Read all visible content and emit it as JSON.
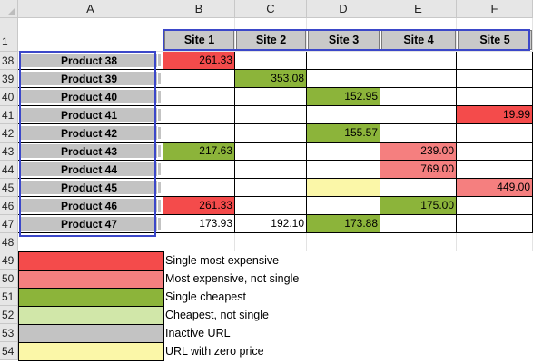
{
  "columns": [
    "A",
    "B",
    "C",
    "D",
    "E",
    "F"
  ],
  "header_row": {
    "row_number": "1",
    "sites": [
      "Site 1",
      "Site 2",
      "Site 3",
      "Site 4",
      "Site 5"
    ]
  },
  "colors": {
    "red": "#f44b4b",
    "light_red": "#f57f7f",
    "green": "#8cb43a",
    "light_green": "#d1e7a9",
    "gray": "#c3c3c3",
    "yellow": "#fbf7a8",
    "selection": "#3b47c9"
  },
  "rows": [
    {
      "row_number": "38",
      "product": "Product 38",
      "cells": [
        {
          "text": "261.33",
          "fill": "red"
        },
        {
          "text": "",
          "fill": ""
        },
        {
          "text": "",
          "fill": ""
        },
        {
          "text": "",
          "fill": ""
        },
        {
          "text": "",
          "fill": ""
        }
      ]
    },
    {
      "row_number": "39",
      "product": "Product 39",
      "cells": [
        {
          "text": "",
          "fill": ""
        },
        {
          "text": "353.08",
          "fill": "green"
        },
        {
          "text": "",
          "fill": ""
        },
        {
          "text": "",
          "fill": ""
        },
        {
          "text": "",
          "fill": ""
        }
      ]
    },
    {
      "row_number": "40",
      "product": "Product 40",
      "cells": [
        {
          "text": "",
          "fill": ""
        },
        {
          "text": "",
          "fill": ""
        },
        {
          "text": "152.95",
          "fill": "green"
        },
        {
          "text": "",
          "fill": ""
        },
        {
          "text": "",
          "fill": ""
        }
      ]
    },
    {
      "row_number": "41",
      "product": "Product 41",
      "cells": [
        {
          "text": "",
          "fill": ""
        },
        {
          "text": "",
          "fill": ""
        },
        {
          "text": "",
          "fill": ""
        },
        {
          "text": "",
          "fill": ""
        },
        {
          "text": "19.99",
          "fill": "red"
        }
      ]
    },
    {
      "row_number": "42",
      "product": "Product 42",
      "cells": [
        {
          "text": "",
          "fill": ""
        },
        {
          "text": "",
          "fill": ""
        },
        {
          "text": "155.57",
          "fill": "green"
        },
        {
          "text": "",
          "fill": ""
        },
        {
          "text": "",
          "fill": ""
        }
      ]
    },
    {
      "row_number": "43",
      "product": "Product 43",
      "cells": [
        {
          "text": "217.63",
          "fill": "green"
        },
        {
          "text": "",
          "fill": ""
        },
        {
          "text": "",
          "fill": ""
        },
        {
          "text": "239.00",
          "fill": "light_red"
        },
        {
          "text": "",
          "fill": ""
        }
      ]
    },
    {
      "row_number": "44",
      "product": "Product 44",
      "cells": [
        {
          "text": "",
          "fill": ""
        },
        {
          "text": "",
          "fill": ""
        },
        {
          "text": "",
          "fill": ""
        },
        {
          "text": "769.00",
          "fill": "light_red"
        },
        {
          "text": "",
          "fill": ""
        }
      ]
    },
    {
      "row_number": "45",
      "product": "Product 45",
      "cells": [
        {
          "text": "",
          "fill": ""
        },
        {
          "text": "",
          "fill": ""
        },
        {
          "text": "",
          "fill": "yellow"
        },
        {
          "text": "",
          "fill": ""
        },
        {
          "text": "449.00",
          "fill": "light_red"
        }
      ]
    },
    {
      "row_number": "46",
      "product": "Product 46",
      "cells": [
        {
          "text": "261.33",
          "fill": "red"
        },
        {
          "text": "",
          "fill": ""
        },
        {
          "text": "",
          "fill": ""
        },
        {
          "text": "175.00",
          "fill": "green"
        },
        {
          "text": "",
          "fill": ""
        }
      ]
    },
    {
      "row_number": "47",
      "product": "Product 47",
      "cells": [
        {
          "text": "173.93",
          "fill": ""
        },
        {
          "text": "192.10",
          "fill": ""
        },
        {
          "text": "173.88",
          "fill": "green"
        },
        {
          "text": "",
          "fill": ""
        },
        {
          "text": "",
          "fill": ""
        }
      ]
    }
  ],
  "empty_row": {
    "row_number": "48"
  },
  "legend": [
    {
      "row_number": "49",
      "fill": "red",
      "label": "Single most expensive"
    },
    {
      "row_number": "50",
      "fill": "light_red",
      "label": "Most expensive, not single"
    },
    {
      "row_number": "51",
      "fill": "green",
      "label": "Single cheapest"
    },
    {
      "row_number": "52",
      "fill": "light_green",
      "label": "Cheapest, not single"
    },
    {
      "row_number": "53",
      "fill": "gray",
      "label": "Inactive URL"
    },
    {
      "row_number": "54",
      "fill": "yellow",
      "label": "URL with zero price"
    }
  ]
}
